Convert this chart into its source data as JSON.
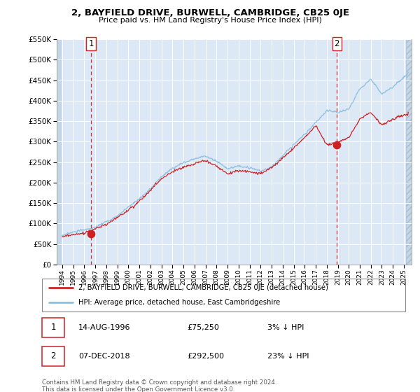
{
  "title": "2, BAYFIELD DRIVE, BURWELL, CAMBRIDGE, CB25 0JE",
  "subtitle": "Price paid vs. HM Land Registry's House Price Index (HPI)",
  "ylim": [
    0,
    550000
  ],
  "yticks": [
    0,
    50000,
    100000,
    150000,
    200000,
    250000,
    300000,
    350000,
    400000,
    450000,
    500000,
    550000
  ],
  "ytick_labels": [
    "£0",
    "£50K",
    "£100K",
    "£150K",
    "£200K",
    "£250K",
    "£300K",
    "£350K",
    "£400K",
    "£450K",
    "£500K",
    "£550K"
  ],
  "xlim_start": 1993.5,
  "xlim_end": 2025.7,
  "hatch_start": 2025.17,
  "data_start": 1993.9,
  "data_end": 2025.5,
  "xtick_years": [
    1994,
    1995,
    1996,
    1997,
    1998,
    1999,
    2000,
    2001,
    2002,
    2003,
    2004,
    2005,
    2006,
    2007,
    2008,
    2009,
    2010,
    2011,
    2012,
    2013,
    2014,
    2015,
    2016,
    2017,
    2018,
    2019,
    2020,
    2021,
    2022,
    2023,
    2024,
    2025
  ],
  "sale1_x": 1996.617,
  "sale1_y": 75250,
  "sale1_label": "1",
  "sale1_date": "14-AUG-1996",
  "sale1_price": "£75,250",
  "sale1_hpi": "3% ↓ HPI",
  "sale2_x": 2018.925,
  "sale2_y": 292500,
  "sale2_label": "2",
  "sale2_date": "07-DEC-2018",
  "sale2_price": "£292,500",
  "sale2_hpi": "23% ↓ HPI",
  "hpi_color": "#8bbfdf",
  "price_color": "#cc2222",
  "sale_marker_color": "#cc2222",
  "dashed_line_color": "#cc2222",
  "legend1": "2, BAYFIELD DRIVE, BURWELL, CAMBRIDGE, CB25 0JE (detached house)",
  "legend2": "HPI: Average price, detached house, East Cambridgeshire",
  "footer": "Contains HM Land Registry data © Crown copyright and database right 2024.\nThis data is licensed under the Open Government Licence v3.0.",
  "plot_bg": "#dce8f5",
  "hatch_bg": "#c5d5e8",
  "grid_color": "#ffffff",
  "fig_bg": "#ffffff"
}
